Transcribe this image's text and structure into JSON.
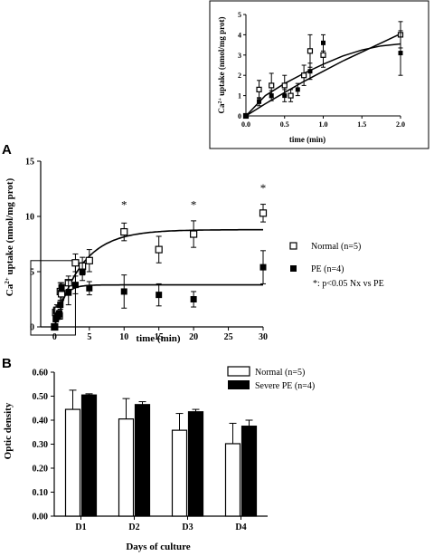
{
  "panel_a_label": "A",
  "panel_b_label": "B",
  "chart_data": [
    {
      "id": "panel-a",
      "type": "scatter",
      "title": "",
      "xlabel": "time (min)",
      "ylabel_prefix": "Ca",
      "ylabel_sup": "2+",
      "ylabel_rest": " uptake (nmol/mg prot)",
      "xlim": [
        -2,
        30
      ],
      "ylim": [
        0,
        15
      ],
      "xticks": [
        0,
        5,
        10,
        15,
        20,
        25,
        30
      ],
      "yticks": [
        0,
        5,
        10,
        15
      ],
      "grid": false,
      "legend_position": "right",
      "series": [
        {
          "name": "Normal (n=5)",
          "marker": "open-square",
          "points": [
            {
              "x": 0,
              "y": 0,
              "err": 0
            },
            {
              "x": 0.17,
              "y": 1.3,
              "err": 0.4
            },
            {
              "x": 0.33,
              "y": 1.5,
              "err": 0.5
            },
            {
              "x": 0.5,
              "y": 1.5,
              "err": 0.4
            },
            {
              "x": 0.67,
              "y": 1.0,
              "err": 0.3
            },
            {
              "x": 0.83,
              "y": 3.2,
              "err": 0.8
            },
            {
              "x": 1,
              "y": 3.0,
              "err": 0.6
            },
            {
              "x": 2,
              "y": 4.0,
              "err": 0.6
            },
            {
              "x": 3,
              "y": 5.8,
              "err": 0.8
            },
            {
              "x": 4,
              "y": 5.5,
              "err": 0.8
            },
            {
              "x": 5,
              "y": 6.0,
              "err": 1.0
            },
            {
              "x": 10,
              "y": 8.6,
              "err": 0.8
            },
            {
              "x": 15,
              "y": 7.0,
              "err": 1.2
            },
            {
              "x": 20,
              "y": 8.4,
              "err": 1.2
            },
            {
              "x": 30,
              "y": 10.3,
              "err": 0.8
            }
          ],
          "fit_plateau": 8.8,
          "fit_k": 0.26
        },
        {
          "name": "PE (n=4)",
          "marker": "filled-square",
          "points": [
            {
              "x": 0,
              "y": 0,
              "err": 0
            },
            {
              "x": 0.17,
              "y": 0.7,
              "err": 0.2
            },
            {
              "x": 0.33,
              "y": 0.9,
              "err": 0.2
            },
            {
              "x": 0.5,
              "y": 1.0,
              "err": 0.3
            },
            {
              "x": 0.67,
              "y": 1.2,
              "err": 0.3
            },
            {
              "x": 0.83,
              "y": 2.0,
              "err": 0.4
            },
            {
              "x": 1,
              "y": 3.6,
              "err": 0.4
            },
            {
              "x": 2,
              "y": 3.1,
              "err": 1.1
            },
            {
              "x": 3,
              "y": 3.8,
              "err": 0.8
            },
            {
              "x": 4,
              "y": 5.0,
              "err": 0.8
            },
            {
              "x": 5,
              "y": 3.5,
              "err": 0.6
            },
            {
              "x": 10,
              "y": 3.2,
              "err": 1.5
            },
            {
              "x": 15,
              "y": 2.9,
              "err": 1.0
            },
            {
              "x": 20,
              "y": 2.5,
              "err": 0.7
            },
            {
              "x": 30,
              "y": 5.4,
              "err": 1.5
            }
          ],
          "fit_plateau": 3.8,
          "fit_k": 0.9
        }
      ],
      "annotations": [
        {
          "x": 10,
          "y": 10.7,
          "text": "*"
        },
        {
          "x": 20,
          "y": 10.7,
          "text": "*"
        },
        {
          "x": 30,
          "y": 12.2,
          "text": "*"
        }
      ],
      "footnote": "*: p<0.05 Nx vs PE"
    },
    {
      "id": "panel-a-inset",
      "type": "scatter",
      "xlabel": "time (min)",
      "ylabel_prefix": "Ca",
      "ylabel_sup": "2+",
      "ylabel_rest": " uptake (nmol/mg prot)",
      "xlim": [
        0,
        2
      ],
      "ylim": [
        0,
        5
      ],
      "xticks": [
        0.0,
        0.5,
        1.0,
        1.5,
        2.0
      ],
      "xtick_labels": [
        "0.0",
        "0.5",
        "1.0",
        "1.5",
        "2.0"
      ],
      "yticks": [
        0,
        1,
        2,
        3,
        4,
        5
      ],
      "series": [
        {
          "name": "Normal",
          "marker": "open-square",
          "points": [
            {
              "x": 0,
              "y": 0,
              "err": 0
            },
            {
              "x": 0.17,
              "y": 1.3,
              "err": 0.45
            },
            {
              "x": 0.33,
              "y": 1.5,
              "err": 0.6
            },
            {
              "x": 0.5,
              "y": 1.5,
              "err": 0.5
            },
            {
              "x": 0.58,
              "y": 1.0,
              "err": 0.3
            },
            {
              "x": 0.75,
              "y": 2.0,
              "err": 0.5
            },
            {
              "x": 0.83,
              "y": 3.2,
              "err": 0.8
            },
            {
              "x": 1.0,
              "y": 3.0,
              "err": 0.6
            },
            {
              "x": 2.0,
              "y": 4.0,
              "err": 0.65
            }
          ],
          "fit": [
            [
              0,
              0
            ],
            [
              0.25,
              1.0
            ],
            [
              0.5,
              1.6
            ],
            [
              0.75,
              2.1
            ],
            [
              1.0,
              2.55
            ],
            [
              1.25,
              2.95
            ],
            [
              1.5,
              3.25
            ],
            [
              1.75,
              3.45
            ],
            [
              2.0,
              3.55
            ]
          ]
        },
        {
          "name": "PE",
          "marker": "filled-square",
          "points": [
            {
              "x": 0,
              "y": 0,
              "err": 0
            },
            {
              "x": 0.17,
              "y": 0.7,
              "err": 0.2
            },
            {
              "x": 0.33,
              "y": 1.0,
              "err": 0.25
            },
            {
              "x": 0.5,
              "y": 1.0,
              "err": 0.3
            },
            {
              "x": 0.67,
              "y": 1.3,
              "err": 0.3
            },
            {
              "x": 0.83,
              "y": 2.2,
              "err": 0.4
            },
            {
              "x": 1.0,
              "y": 3.6,
              "err": 0.4
            },
            {
              "x": 2.0,
              "y": 3.1,
              "err": 1.1
            }
          ],
          "fit": [
            [
              0,
              0
            ],
            [
              0.25,
              0.6
            ],
            [
              0.5,
              1.15
            ],
            [
              0.75,
              1.7
            ],
            [
              1.0,
              2.2
            ],
            [
              1.25,
              2.7
            ],
            [
              1.5,
              3.15
            ],
            [
              1.75,
              3.6
            ],
            [
              2.0,
              4.05
            ]
          ]
        }
      ]
    },
    {
      "id": "panel-b",
      "type": "bar",
      "xlabel": "Days of culture",
      "ylabel": "Optic density",
      "ylim": [
        0,
        0.6
      ],
      "yticks": [
        0.0,
        0.1,
        0.2,
        0.3,
        0.4,
        0.5,
        0.6
      ],
      "ytick_labels": [
        "0.00",
        "0.10",
        "0.20",
        "0.30",
        "0.40",
        "0.50",
        "0.60"
      ],
      "categories": [
        "D1",
        "D2",
        "D3",
        "D4"
      ],
      "legend_position": "top-right",
      "series": [
        {
          "name": "Normal (n=5)",
          "fill": "open",
          "values": [
            0.445,
            0.405,
            0.358,
            0.302
          ],
          "errors": [
            0.08,
            0.085,
            0.07,
            0.085
          ]
        },
        {
          "name": "Severe PE (n=4)",
          "fill": "filled",
          "values": [
            0.505,
            0.465,
            0.435,
            0.375
          ],
          "errors": [
            0.005,
            0.012,
            0.01,
            0.025
          ]
        }
      ]
    }
  ]
}
